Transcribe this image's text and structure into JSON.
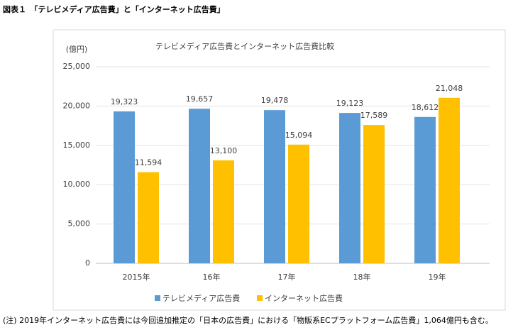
{
  "header": {
    "title": "図表１　「テレビメディア広告費」と「インターネット広告費」"
  },
  "chart_data": {
    "type": "bar",
    "title": "テレビメディア広告費とインターネット広告費比較",
    "y_unit": "(億円)",
    "categories": [
      "2015年",
      "16年",
      "17年",
      "18年",
      "19年"
    ],
    "series": [
      {
        "name": "テレビメディア広告費",
        "color": "#5b9bd5",
        "values": [
          19323,
          19657,
          19478,
          19123,
          18612
        ],
        "value_labels": [
          "19,323",
          "19,657",
          "19,478",
          "19,123",
          "18,612"
        ]
      },
      {
        "name": "インターネット広告費",
        "color": "#ffc000",
        "values": [
          11594,
          13100,
          15094,
          17589,
          21048
        ],
        "value_labels": [
          "11,594",
          "13,100",
          "15,094",
          "17,589",
          "21,048"
        ]
      }
    ],
    "ylim": [
      0,
      25000
    ],
    "yticks": [
      0,
      {
        "value": 5000,
        "label": "5,000"
      },
      {
        "value": 10000,
        "label": "10,000"
      },
      {
        "value": 15000,
        "label": "15,000"
      },
      {
        "value": 20000,
        "label": "20,000"
      },
      {
        "value": 25000,
        "label": "25,000"
      }
    ],
    "grid": true,
    "legend": "bottom"
  },
  "footnote": "(注) 2019年インターネット広告費には今回追加推定の「日本の広告費」における「物販系ECプラットフォーム広告費」1,064億円も含む。"
}
